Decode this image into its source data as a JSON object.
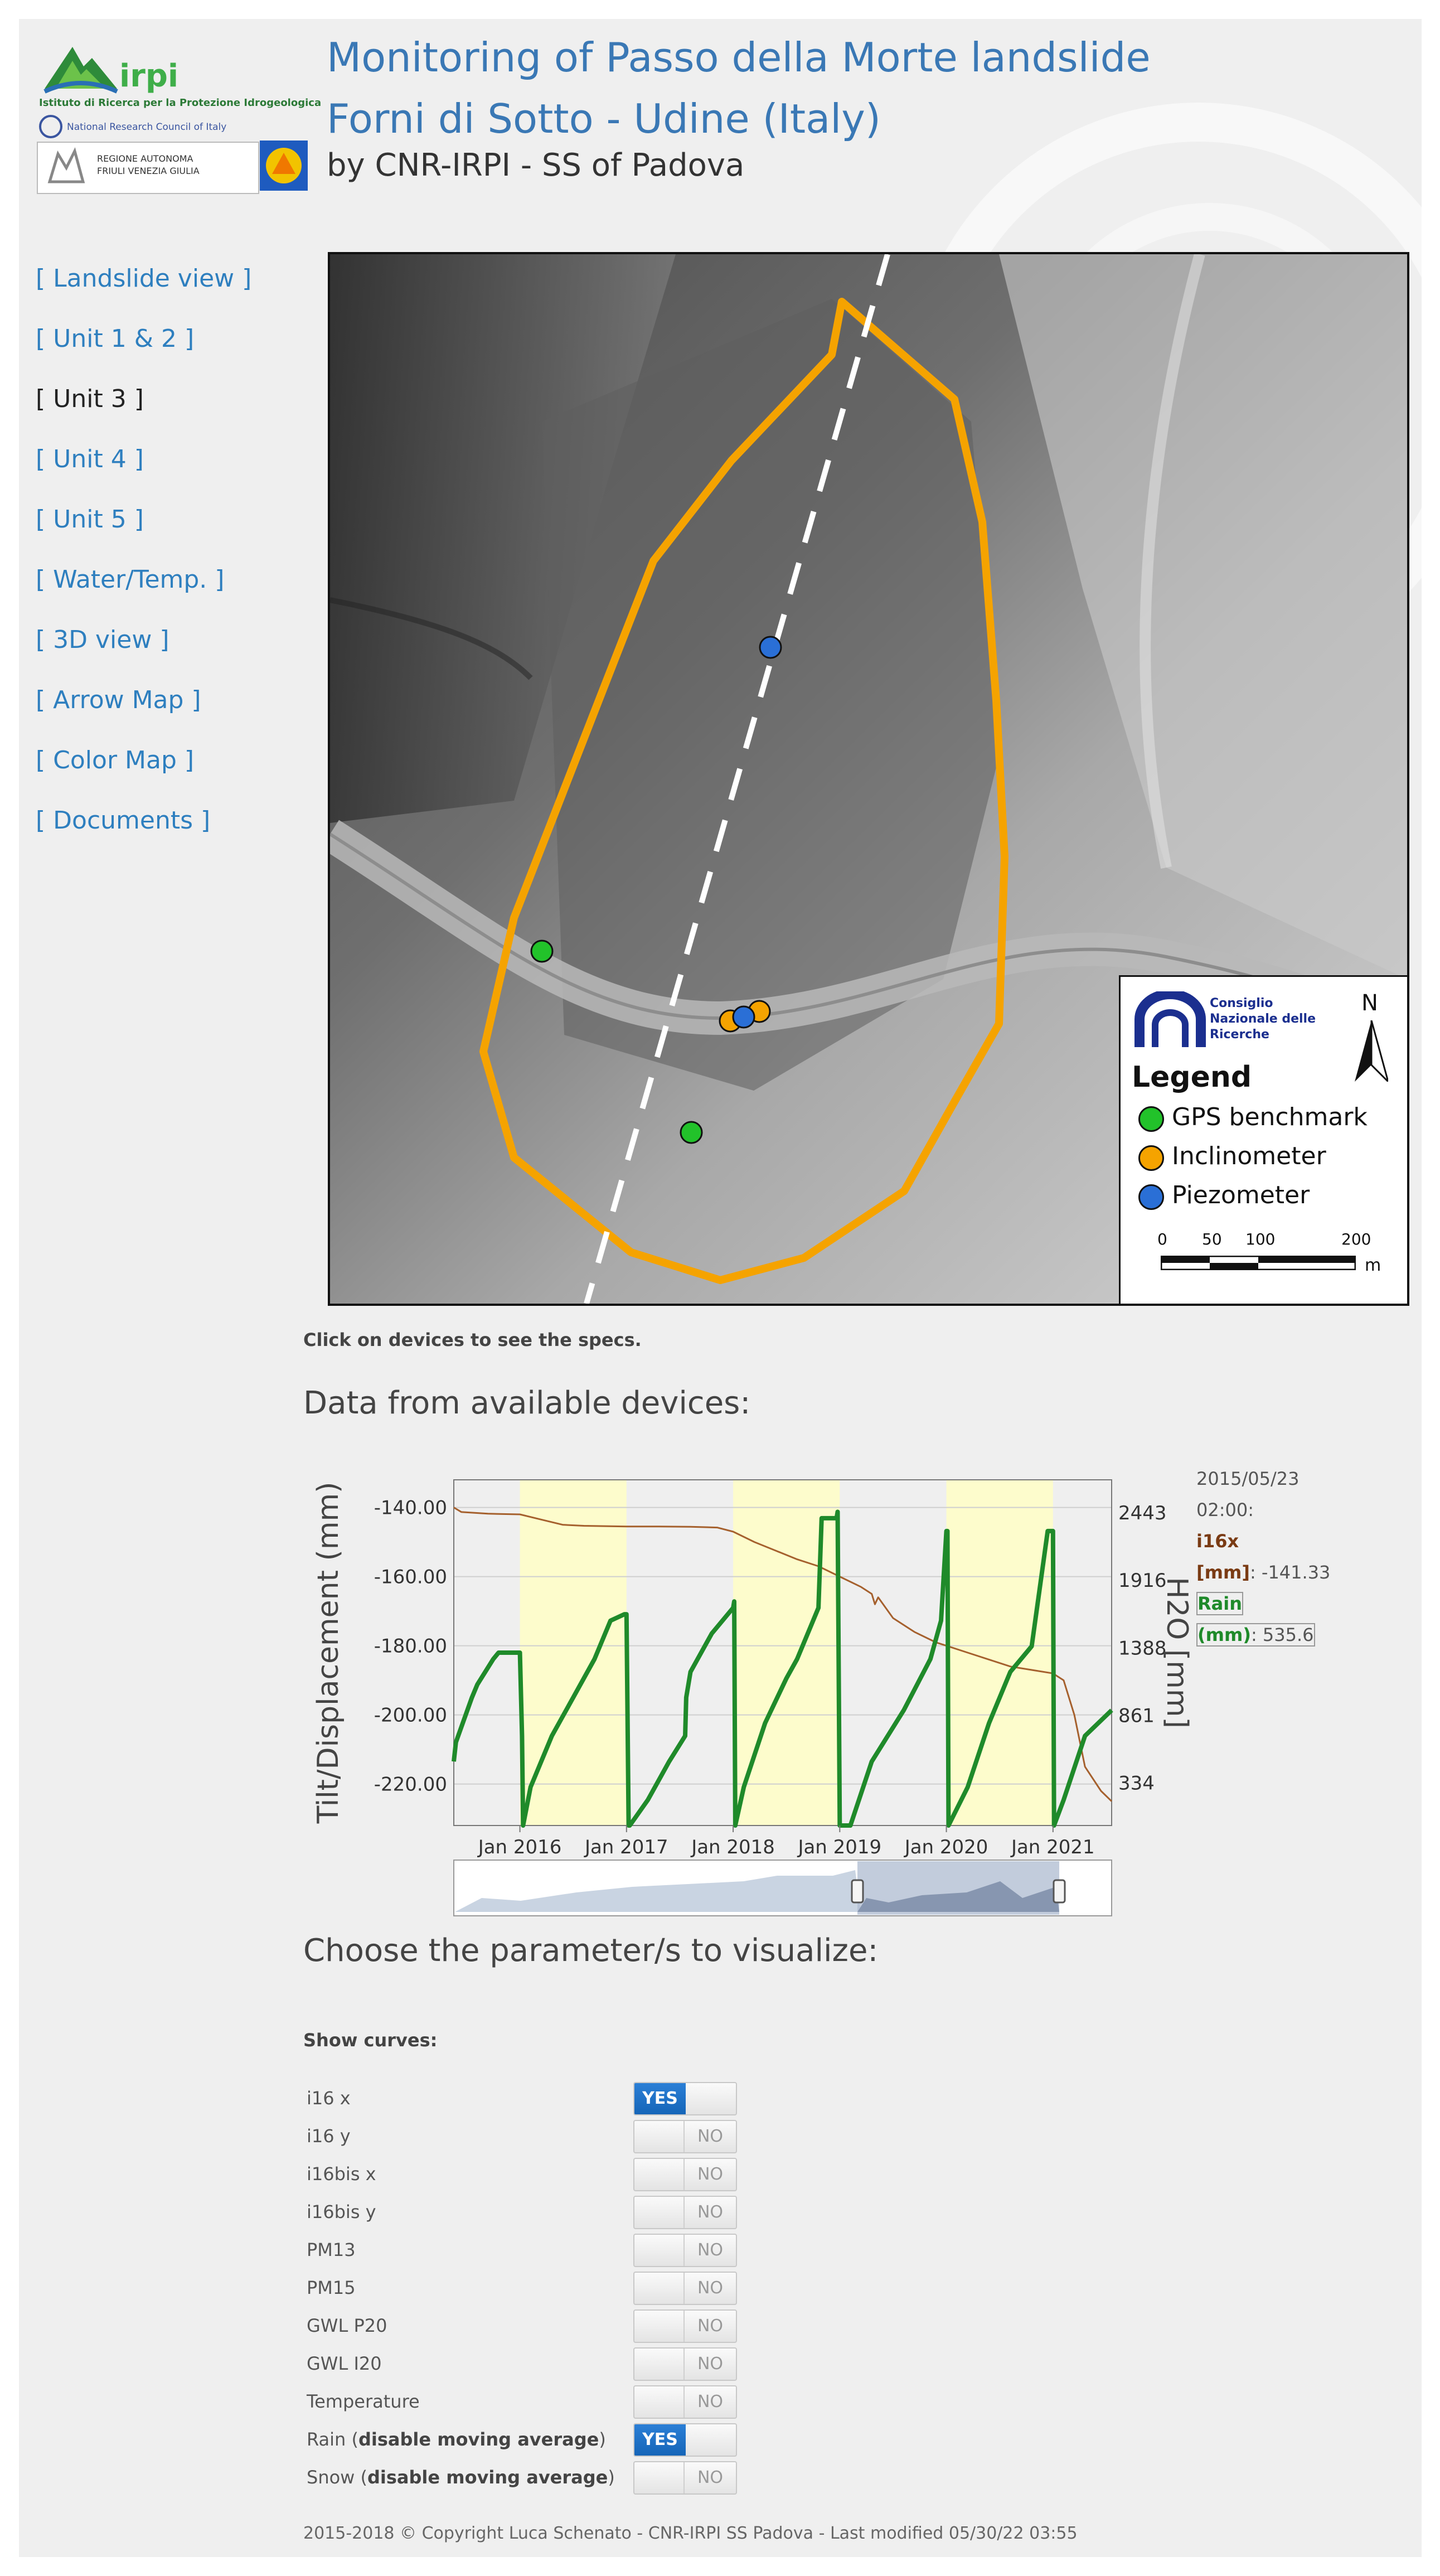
{
  "header": {
    "title_line1": "Monitoring of Passo della Morte landslide",
    "title_line2": "Forni di Sotto - Udine (Italy)",
    "subtitle": "by CNR-IRPI - SS of Padova",
    "logo_irpi": "irpi",
    "logo_irpi_sub": "Istituto di Ricerca per la Protezione Idrogeologica",
    "logo_cnr": "National Research Council of Italy",
    "logo_fvg_line1": "REGIONE AUTONOMA",
    "logo_fvg_line2": "FRIULI VENEZIA GIULIA"
  },
  "nav": [
    {
      "label": "[ Landslide view ]",
      "current": false
    },
    {
      "label": "[ Unit 1 & 2 ]",
      "current": false
    },
    {
      "label": "[ Unit 3 ]",
      "current": true
    },
    {
      "label": "[ Unit 4 ]",
      "current": false
    },
    {
      "label": "[ Unit 5 ]",
      "current": false
    },
    {
      "label": "[ Water/Temp. ]",
      "current": false
    },
    {
      "label": "[ 3D view ]",
      "current": false
    },
    {
      "label": "[ Arrow Map ]",
      "current": false
    },
    {
      "label": "[ Color Map ]",
      "current": false
    },
    {
      "label": "[ Documents ]",
      "current": false
    }
  ],
  "map": {
    "legend_org_line1": "Consiglio",
    "legend_org_line2": "Nazionale delle",
    "legend_org_line3": "Ricerche",
    "north": "N",
    "legend_title": "Legend",
    "legend_items": [
      {
        "label": "GPS benchmark",
        "color": "#22c22a"
      },
      {
        "label": "Inclinometer",
        "color": "#f5a300"
      },
      {
        "label": "Piezometer",
        "color": "#2a6fd6"
      }
    ],
    "scale_ticks": [
      "0",
      "50",
      "100",
      "200"
    ],
    "scale_unit": "m",
    "boundary_color": "#f5a300"
  },
  "click_note": "Click on devices to see the specs.",
  "data_heading": "Data from available devices:",
  "chart_data": {
    "type": "line",
    "ylabel_left": "Tilt/Displacement (mm)",
    "ylabel_right": "H2O [mm]",
    "left_ticks": [
      "-140.00",
      "-160.00",
      "-180.00",
      "-200.00",
      "-220.00"
    ],
    "left_ylim": [
      -232,
      -132
    ],
    "right_ticks": [
      "2443",
      "1916",
      "1388",
      "861",
      "334"
    ],
    "right_ylim": [
      0,
      2700
    ],
    "x_ticks": [
      "Jan 2016",
      "Jan 2017",
      "Jan 2018",
      "Jan 2019",
      "Jan 2020",
      "Jan 2021"
    ],
    "xlim": [
      2015.38,
      2021.55
    ],
    "shaded_periods": [
      [
        2016.0,
        2017.0
      ],
      [
        2018.0,
        2019.0
      ],
      [
        2020.0,
        2021.0
      ]
    ],
    "series": [
      {
        "name": "i16x",
        "color": "#a5602d",
        "axis": "left",
        "x": [
          2015.38,
          2015.45,
          2015.7,
          2016.0,
          2016.2,
          2016.4,
          2016.6,
          2017.0,
          2017.3,
          2017.6,
          2017.85,
          2018.0,
          2018.2,
          2018.4,
          2018.6,
          2018.8,
          2019.0,
          2019.2,
          2019.3,
          2019.33,
          2019.36,
          2019.5,
          2019.7,
          2019.9,
          2020.0,
          2020.2,
          2020.4,
          2020.6,
          2020.8,
          2021.0,
          2021.1,
          2021.2,
          2021.3,
          2021.45,
          2021.55
        ],
        "y": [
          -140.0,
          -141.3,
          -141.8,
          -142.0,
          -143.5,
          -145.0,
          -145.3,
          -145.5,
          -145.5,
          -145.6,
          -145.8,
          -147.0,
          -150.0,
          -152.5,
          -155.0,
          -157.0,
          -160.0,
          -163.0,
          -165.0,
          -168.0,
          -166.0,
          -172.0,
          -176.0,
          -179.0,
          -180.0,
          -182.0,
          -184.0,
          -186.0,
          -187.0,
          -188.0,
          -190.0,
          -200.0,
          -215.0,
          -222.0,
          -225.0
        ]
      },
      {
        "name": "Rain",
        "color": "#1f8a2a",
        "axis": "right",
        "x": [
          2015.38,
          2015.4,
          2015.55,
          2015.6,
          2015.75,
          2015.8,
          2016.0,
          2016.02,
          2016.03,
          2016.1,
          2016.3,
          2016.5,
          2016.7,
          2016.85,
          2016.98,
          2017.0,
          2017.02,
          2017.03,
          2017.2,
          2017.4,
          2017.55,
          2017.56,
          2017.6,
          2017.8,
          2018.0,
          2018.01,
          2018.02,
          2018.1,
          2018.3,
          2018.5,
          2018.6,
          2018.8,
          2018.83,
          2018.97,
          2018.98,
          2019.0,
          2019.1,
          2019.3,
          2019.6,
          2019.85,
          2019.95,
          2020.0,
          2020.01,
          2020.02,
          2020.2,
          2020.4,
          2020.6,
          2020.8,
          2020.95,
          2021.0,
          2021.01,
          2021.1,
          2021.3,
          2021.55
        ],
        "y": [
          500,
          650,
          1000,
          1100,
          1300,
          1350,
          1350,
          700,
          0,
          300,
          700,
          1000,
          1300,
          1600,
          1650,
          1650,
          0,
          0,
          200,
          500,
          700,
          1000,
          1200,
          1500,
          1700,
          1750,
          0,
          300,
          800,
          1150,
          1300,
          1700,
          2400,
          2400,
          2450,
          0,
          0,
          500,
          900,
          1300,
          1600,
          2300,
          2300,
          0,
          300,
          800,
          1200,
          1400,
          2300,
          2300,
          0,
          200,
          700,
          900
        ]
      }
    ]
  },
  "chart_info": {
    "date": "2015/05/23",
    "time": "02:00:",
    "i16x_label": "i16x",
    "i16x_unit": "[mm]",
    "i16x_value": ": -141.33",
    "rain_label": "Rain",
    "rain_unit": "(mm)",
    "rain_value": ": 535.6"
  },
  "param_heading": "Choose the parameter/s to visualize:",
  "show_curves": "Show curves:",
  "params": [
    {
      "label": "i16 x",
      "bold": "",
      "state": "YES"
    },
    {
      "label": "i16 y",
      "bold": "",
      "state": "NO"
    },
    {
      "label": "i16bis x",
      "bold": "",
      "state": "NO"
    },
    {
      "label": "i16bis y",
      "bold": "",
      "state": "NO"
    },
    {
      "label": "PM13",
      "bold": "",
      "state": "NO"
    },
    {
      "label": "PM15",
      "bold": "",
      "state": "NO"
    },
    {
      "label": "GWL P20",
      "bold": "",
      "state": "NO"
    },
    {
      "label": "GWL I20",
      "bold": "",
      "state": "NO"
    },
    {
      "label": "Temperature",
      "bold": "",
      "state": "NO"
    },
    {
      "label": "Rain (",
      "bold": "disable moving average",
      "tail": ")",
      "state": "YES"
    },
    {
      "label": "Snow (",
      "bold": "disable moving average",
      "tail": ")",
      "state": "NO"
    }
  ],
  "footer": "2015-2018 © Copyright Luca Schenato - CNR-IRPI SS Padova - Last modified 05/30/22 03:55"
}
